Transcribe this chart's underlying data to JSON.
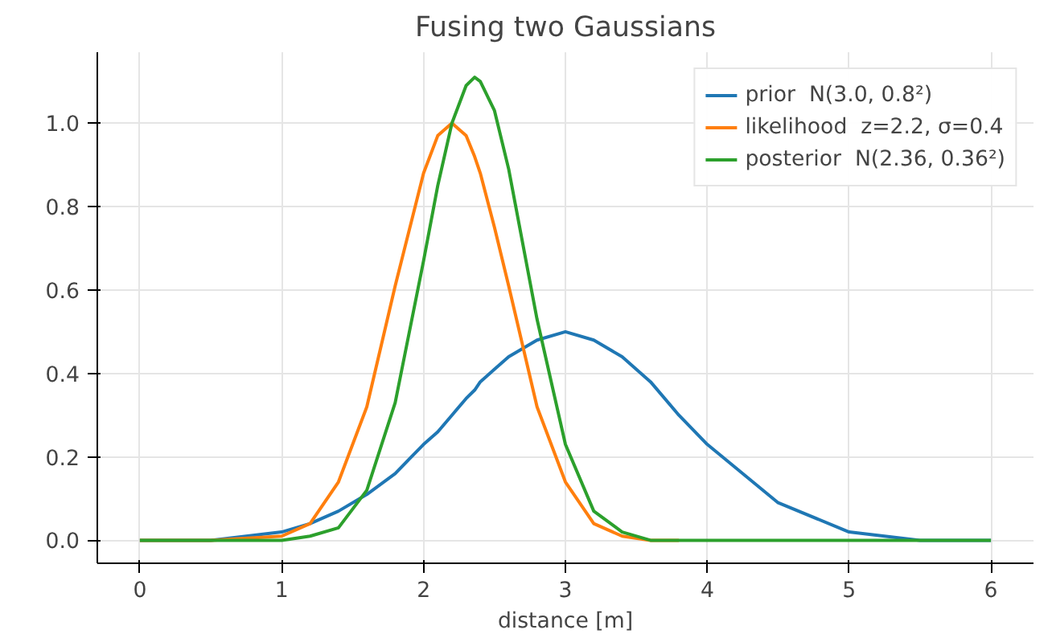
{
  "chart_data": {
    "type": "line",
    "title": "Fusing two Gaussians",
    "xlabel": "distance [m]",
    "x": [
      0,
      0.5,
      1.0,
      1.2,
      1.4,
      1.6,
      1.8,
      2.0,
      2.1,
      2.2,
      2.3,
      2.36,
      2.4,
      2.5,
      2.6,
      2.8,
      3.0,
      3.2,
      3.4,
      3.6,
      3.8,
      4.0,
      4.5,
      5.0,
      5.5,
      6.0
    ],
    "series": [
      {
        "name": "prior  N(3.0, 0.8²)",
        "color": "#1f77b4",
        "values": [
          0,
          0,
          0.02,
          0.04,
          0.07,
          0.11,
          0.16,
          0.23,
          0.26,
          0.3,
          0.34,
          0.36,
          0.38,
          0.41,
          0.44,
          0.48,
          0.5,
          0.48,
          0.44,
          0.38,
          0.3,
          0.23,
          0.09,
          0.02,
          0,
          0
        ]
      },
      {
        "name": "likelihood  z=2.2, σ=0.4",
        "color": "#ff7f0e",
        "values": [
          0,
          0,
          0.01,
          0.04,
          0.14,
          0.32,
          0.61,
          0.88,
          0.97,
          1.0,
          0.97,
          0.92,
          0.88,
          0.75,
          0.61,
          0.32,
          0.14,
          0.04,
          0.01,
          0,
          0,
          null,
          null,
          null,
          null,
          null
        ]
      },
      {
        "name": "posterior  N(2.36, 0.36²)",
        "color": "#2ca02c",
        "values": [
          0,
          0,
          0,
          0.01,
          0.03,
          0.12,
          0.33,
          0.67,
          0.85,
          1.0,
          1.09,
          1.11,
          1.1,
          1.03,
          0.89,
          0.53,
          0.23,
          0.07,
          0.02,
          0,
          0,
          0,
          0,
          0,
          0,
          0
        ]
      }
    ],
    "xlim": [
      -0.3,
      6.3
    ],
    "ylim": [
      -0.055,
      1.17
    ],
    "xticks": [
      0,
      1,
      2,
      3,
      4,
      5,
      6
    ],
    "yticks": [
      {
        "value": 0,
        "label": "0.0"
      },
      {
        "value": 0.2,
        "label": "0.2"
      },
      {
        "value": 0.4,
        "label": "0.4"
      },
      {
        "value": 0.6,
        "label": "0.6"
      },
      {
        "value": 0.8,
        "label": "0.8"
      },
      {
        "value": 1.0,
        "label": "1.0"
      }
    ],
    "grid": true,
    "legend": "top right"
  }
}
